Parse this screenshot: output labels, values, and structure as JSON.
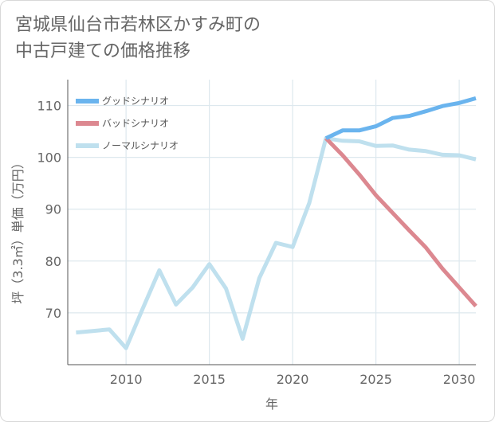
{
  "chart_data": {
    "type": "line",
    "title_line1": "宮城県仙台市若林区かすみ町の",
    "title_line2": "中古戸建ての価格推移",
    "xlabel": "年",
    "ylabel": "坪（3.3㎡）単価（万円）",
    "xlim": [
      2006.5,
      2031
    ],
    "ylim": [
      60,
      115
    ],
    "x_ticks": [
      2010,
      2015,
      2020,
      2025,
      2030
    ],
    "y_ticks": [
      70,
      80,
      90,
      100,
      110
    ],
    "series": [
      {
        "name": "グッドシナリオ",
        "color": "#6ab4ee",
        "x": [
          2022,
          2023,
          2024,
          2025,
          2026,
          2027,
          2028,
          2029,
          2030,
          2031
        ],
        "values": [
          103.7,
          105.2,
          105.2,
          106.0,
          107.6,
          108.0,
          108.9,
          109.9,
          110.5,
          111.4
        ]
      },
      {
        "name": "バッドシナリオ",
        "color": "#dc8890",
        "x": [
          2022,
          2023,
          2024,
          2025,
          2026,
          2027,
          2028,
          2029,
          2030,
          2031
        ],
        "values": [
          103.7,
          100.4,
          96.7,
          92.7,
          89.3,
          85.9,
          82.6,
          78.5,
          74.9,
          71.3
        ]
      },
      {
        "name": "ノーマルシナリオ",
        "color": "#bfe0ee",
        "x": [
          2007,
          2008,
          2009,
          2010,
          2011,
          2012,
          2013,
          2014,
          2015,
          2016,
          2017,
          2018,
          2019,
          2020,
          2021,
          2022,
          2023,
          2024,
          2025,
          2026,
          2027,
          2028,
          2029,
          2030,
          2031
        ],
        "values": [
          66.2,
          66.5,
          66.8,
          63.2,
          70.8,
          78.2,
          71.6,
          74.9,
          79.4,
          74.7,
          65.0,
          76.7,
          83.5,
          82.7,
          91.2,
          103.7,
          103.2,
          103.1,
          102.2,
          102.3,
          101.5,
          101.2,
          100.5,
          100.4,
          99.6
        ]
      }
    ]
  }
}
